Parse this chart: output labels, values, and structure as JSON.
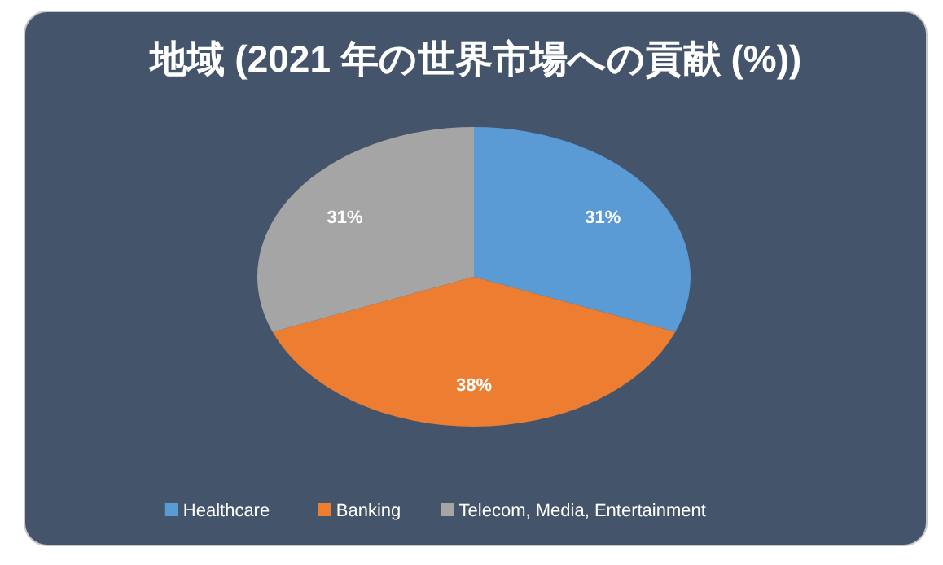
{
  "chart_data": {
    "type": "pie",
    "title": "地域 (2021 年の世界市場への貢献 (%))",
    "categories": [
      "Healthcare",
      "Banking",
      "Telecom, Media, Entertainment"
    ],
    "values": [
      31,
      38,
      31
    ],
    "colors": [
      "#5b9bd5",
      "#ed7d31",
      "#a5a5a5"
    ],
    "value_labels": [
      "31%",
      "38%",
      "31%"
    ],
    "legend": "bottom"
  }
}
